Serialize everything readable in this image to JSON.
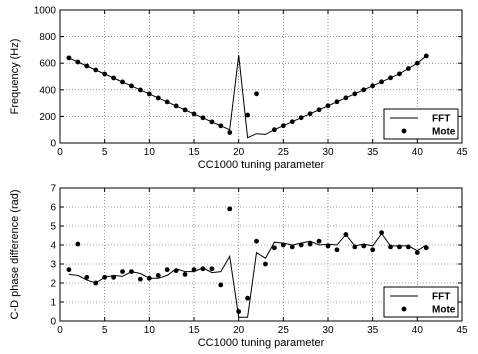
{
  "chart_data": [
    {
      "type": "line",
      "xlabel": "CC1000 tuning parameter",
      "ylabel": "Frequency (Hz)",
      "xlim": [
        0,
        45
      ],
      "ylim": [
        0,
        1000
      ],
      "xticks": [
        0,
        5,
        10,
        15,
        20,
        25,
        30,
        35,
        40,
        45
      ],
      "yticks": [
        0,
        200,
        400,
        600,
        800,
        1000
      ],
      "grid": true,
      "legend_position": "bottom-right",
      "series": [
        {
          "name": "FFT",
          "style": "line",
          "x": [
            1,
            2,
            3,
            4,
            5,
            6,
            7,
            8,
            9,
            10,
            11,
            12,
            13,
            14,
            15,
            16,
            17,
            18,
            19,
            20,
            21,
            22,
            23,
            24,
            25,
            26,
            27,
            28,
            29,
            30,
            31,
            32,
            33,
            34,
            35,
            36,
            37,
            38,
            39,
            40,
            41
          ],
          "y": [
            640,
            609,
            579,
            549,
            519,
            489,
            459,
            429,
            399,
            369,
            339,
            309,
            279,
            249,
            219,
            189,
            159,
            129,
            99,
            660,
            40,
            70,
            65,
            100,
            130,
            160,
            190,
            220,
            250,
            280,
            310,
            340,
            370,
            400,
            430,
            460,
            490,
            520,
            560,
            600,
            655
          ]
        },
        {
          "name": "Mote",
          "style": "marker",
          "x": [
            1,
            2,
            3,
            4,
            5,
            6,
            7,
            8,
            9,
            10,
            11,
            12,
            13,
            14,
            15,
            16,
            17,
            18,
            19,
            21,
            22,
            24,
            25,
            26,
            27,
            28,
            29,
            30,
            31,
            32,
            33,
            34,
            35,
            36,
            37,
            38,
            39,
            40,
            41
          ],
          "y": [
            640,
            609,
            579,
            549,
            519,
            489,
            459,
            429,
            399,
            369,
            339,
            309,
            279,
            249,
            219,
            189,
            159,
            129,
            79,
            210,
            370,
            100,
            130,
            160,
            190,
            220,
            250,
            280,
            310,
            340,
            370,
            400,
            430,
            460,
            490,
            520,
            560,
            600,
            655
          ]
        }
      ]
    },
    {
      "type": "line",
      "xlabel": "CC1000 tuning parameter",
      "ylabel": "C-D phase difference (rad)",
      "xlim": [
        0,
        45
      ],
      "ylim": [
        0,
        7
      ],
      "xticks": [
        0,
        5,
        10,
        15,
        20,
        25,
        30,
        35,
        40,
        45
      ],
      "yticks": [
        0,
        1,
        2,
        3,
        4,
        5,
        6,
        7
      ],
      "grid": true,
      "legend_position": "bottom-right",
      "series": [
        {
          "name": "FFT",
          "style": "line",
          "x": [
            1,
            2,
            3,
            4,
            5,
            6,
            7,
            8,
            9,
            10,
            11,
            12,
            13,
            14,
            15,
            16,
            17,
            18,
            19,
            20,
            21,
            22,
            23,
            24,
            25,
            26,
            27,
            28,
            29,
            30,
            31,
            32,
            33,
            34,
            35,
            36,
            37,
            38,
            39,
            40,
            41
          ],
          "y": [
            2.45,
            2.4,
            2.15,
            2.0,
            2.3,
            2.4,
            2.35,
            2.6,
            2.5,
            2.25,
            2.25,
            2.4,
            2.75,
            2.6,
            2.6,
            2.8,
            2.55,
            2.6,
            3.4,
            0.2,
            0.2,
            3.6,
            3.3,
            4.15,
            4.1,
            4.0,
            4.1,
            4.2,
            4.0,
            4.05,
            4.0,
            4.55,
            3.95,
            4.05,
            3.95,
            4.6,
            3.95,
            3.95,
            3.95,
            3.7,
            4.0
          ]
        },
        {
          "name": "Mote",
          "style": "marker",
          "x": [
            1,
            2,
            3,
            4,
            5,
            6,
            7,
            8,
            9,
            10,
            11,
            12,
            13,
            14,
            15,
            16,
            17,
            18,
            19,
            20,
            21,
            22,
            23,
            24,
            25,
            26,
            27,
            28,
            29,
            30,
            31,
            32,
            33,
            34,
            35,
            36,
            37,
            38,
            39,
            40,
            41
          ],
          "y": [
            2.7,
            4.05,
            2.3,
            2.0,
            2.3,
            2.3,
            2.6,
            2.6,
            2.2,
            2.25,
            2.4,
            2.7,
            2.65,
            2.45,
            2.7,
            2.75,
            2.75,
            1.9,
            5.9,
            0.5,
            1.2,
            4.2,
            3.0,
            3.85,
            4.0,
            3.9,
            4.0,
            4.05,
            4.2,
            3.95,
            3.75,
            4.55,
            3.9,
            3.95,
            3.75,
            4.65,
            3.9,
            3.9,
            3.9,
            3.6,
            3.85
          ]
        }
      ]
    }
  ]
}
